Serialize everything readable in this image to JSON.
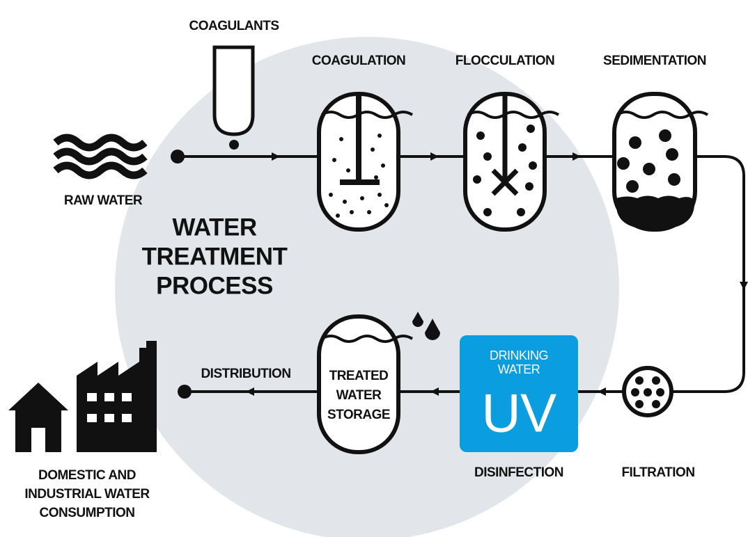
{
  "title": {
    "lines": [
      "WATER",
      "TREATMENT",
      "PROCESS"
    ]
  },
  "steps": {
    "coagulants": "COAGULANTS",
    "raw_water": "RAW WATER",
    "coagulation": "COAGULATION",
    "flocculation": "FLOCCULATION",
    "sedimentation": "SEDIMENTATION",
    "filtration": "FILTRATION",
    "disinfection": "DISINFECTION",
    "distribution": "DISTRIBUTION"
  },
  "storage": {
    "lines": [
      "TREATED",
      "WATER",
      "STORAGE"
    ]
  },
  "uv_box": {
    "caption_lines": [
      "DRINKING",
      "WATER"
    ],
    "label": "UV"
  },
  "consumption": {
    "lines": [
      "DOMESTIC AND",
      "INDUSTRIAL WATER",
      "CONSUMPTION"
    ]
  }
}
